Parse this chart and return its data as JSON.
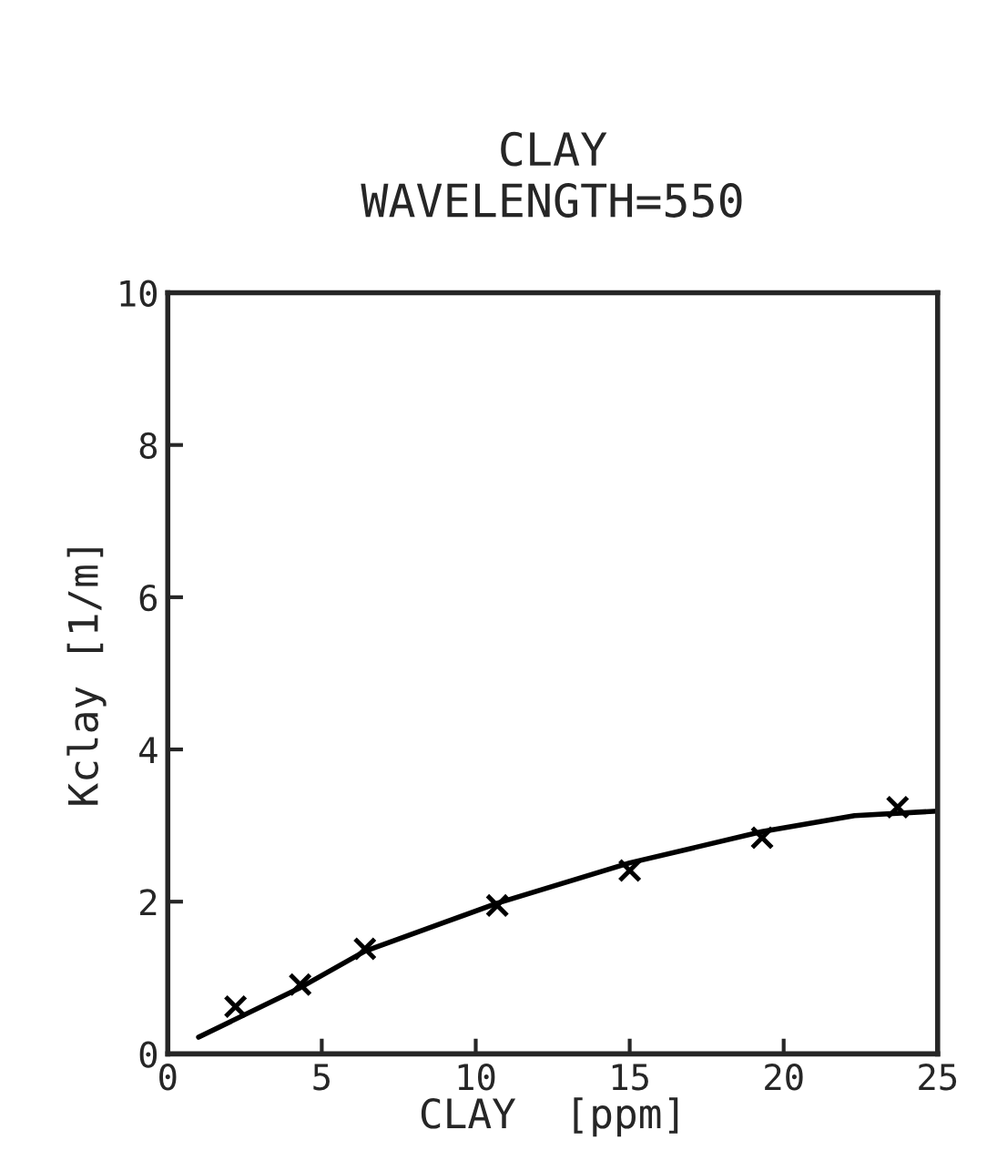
{
  "chart_data": {
    "type": "scatter",
    "title": "CLAY\nWAVELENGTH=550",
    "xlabel": "CLAY  [ppm]",
    "ylabel": "Kclay [1/m]",
    "xlim": [
      0,
      25
    ],
    "ylim": [
      0,
      10
    ],
    "xticks": [
      0,
      5,
      10,
      15,
      20,
      25
    ],
    "yticks": [
      0,
      2,
      4,
      6,
      8,
      10
    ],
    "grid": false,
    "legend": false,
    "series": [
      {
        "color": "#000000",
        "marker": "cross",
        "x": [
          2.2,
          4.3,
          6.4,
          10.7,
          15.0,
          19.3,
          23.7
        ],
        "values": [
          0.62,
          0.91,
          1.38,
          1.95,
          2.41,
          2.84,
          3.24
        ]
      },
      {
        "type": "line",
        "color": "#000000",
        "line_style": "solid",
        "x": [
          1.0,
          4.3,
          6.4,
          10.7,
          15.0,
          19.3,
          22.3,
          25.0
        ],
        "values": [
          0.22,
          0.87,
          1.35,
          1.98,
          2.51,
          2.92,
          3.13,
          3.19
        ]
      }
    ]
  }
}
